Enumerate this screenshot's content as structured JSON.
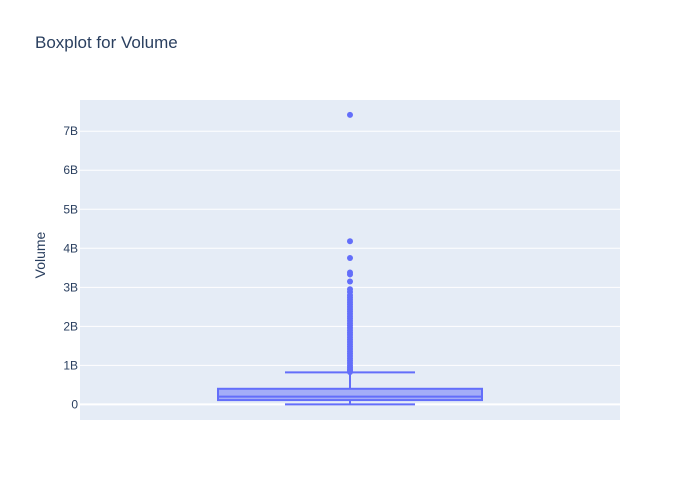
{
  "chart_data": {
    "type": "box",
    "title": "Boxplot for Volume",
    "xlabel": "",
    "ylabel": "Volume",
    "y_ticks": [
      0,
      1000000000,
      2000000000,
      3000000000,
      4000000000,
      5000000000,
      6000000000,
      7000000000
    ],
    "y_tick_labels": [
      "0",
      "1B",
      "2B",
      "3B",
      "4B",
      "5B",
      "6B",
      "7B"
    ],
    "ylim": [
      -400000000,
      7800000000
    ],
    "grid": true,
    "color": "#636efa",
    "plot_background": "#e5ecf6",
    "series": [
      {
        "min": 0,
        "q1": 110000000,
        "median": 200000000,
        "q3": 400000000,
        "upper_fence": 820000000,
        "outliers": [
          7420000000,
          4180000000,
          3750000000,
          3380000000,
          3330000000,
          3150000000,
          2950000000,
          2880000000,
          2800000000,
          2740000000,
          2680000000,
          2620000000,
          2560000000,
          2500000000,
          2440000000,
          2380000000,
          2320000000,
          2260000000,
          2200000000,
          2140000000,
          2080000000,
          2020000000,
          1960000000,
          1900000000,
          1840000000,
          1780000000,
          1720000000,
          1660000000,
          1600000000,
          1540000000,
          1480000000,
          1420000000,
          1360000000,
          1300000000,
          1240000000,
          1180000000,
          1120000000,
          1060000000,
          1000000000,
          950000000,
          900000000,
          860000000,
          830000000
        ]
      }
    ]
  }
}
